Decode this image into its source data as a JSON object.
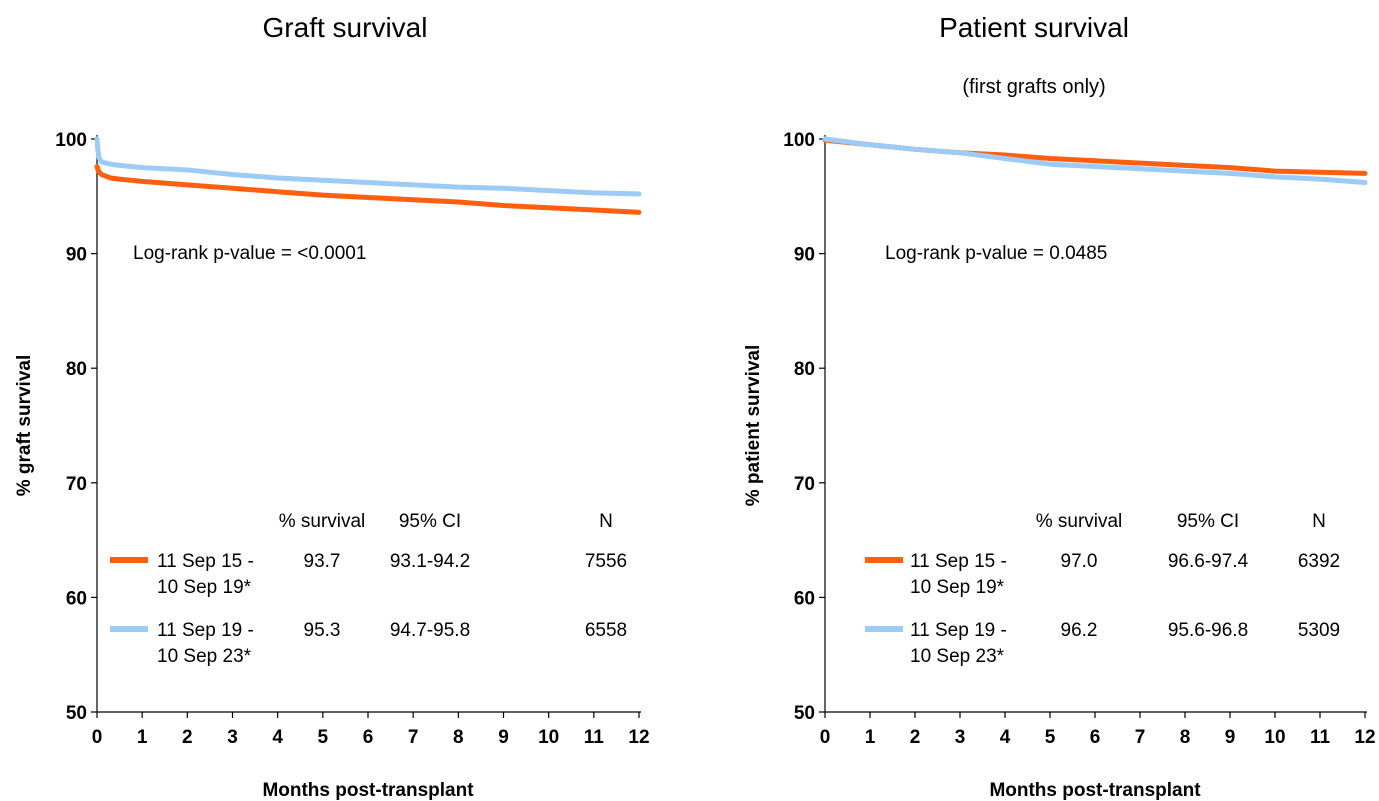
{
  "colors": {
    "series1": "#ff5f0f",
    "series2": "#9ccbf6",
    "axis": "#000000"
  },
  "chart_data": [
    {
      "type": "line",
      "title": "Graft survival",
      "subtitle": "",
      "xlabel": "Months post-transplant",
      "ylabel": "% graft survival",
      "xlim": [
        0,
        12
      ],
      "ylim": [
        50,
        100
      ],
      "xticks": [
        0,
        1,
        2,
        3,
        4,
        5,
        6,
        7,
        8,
        9,
        10,
        11,
        12
      ],
      "yticks": [
        50,
        60,
        70,
        80,
        90,
        100
      ],
      "grid": false,
      "annotation": "Log-rank p-value = <0.0001",
      "table_headers": [
        "% survival",
        "95% CI",
        "N"
      ],
      "series": [
        {
          "name_line1": "11 Sep 15 -",
          "name_line2": "10 Sep 19*",
          "color": "#ff5f0f",
          "survival": "93.7",
          "ci": "93.1-94.2",
          "n": "7556",
          "x": [
            0,
            0.03,
            0.1,
            0.3,
            0.5,
            1,
            2,
            3,
            4,
            5,
            6,
            7,
            8,
            9,
            10,
            11,
            12
          ],
          "y": [
            97.6,
            97.2,
            96.9,
            96.6,
            96.5,
            96.3,
            96.0,
            95.7,
            95.4,
            95.1,
            94.9,
            94.7,
            94.5,
            94.2,
            94.0,
            93.8,
            93.6
          ]
        },
        {
          "name_line1": "11 Sep 19 -",
          "name_line2": "10 Sep 23*",
          "color": "#9ccbf6",
          "survival": "95.3",
          "ci": "94.7-95.8",
          "n": "6558",
          "x": [
            0,
            0.02,
            0.05,
            0.1,
            0.3,
            0.5,
            1,
            2,
            3,
            4,
            5,
            6,
            7,
            8,
            9,
            10,
            11,
            12
          ],
          "y": [
            100,
            99.0,
            98.3,
            98.0,
            97.8,
            97.7,
            97.5,
            97.3,
            96.9,
            96.6,
            96.4,
            96.2,
            96.0,
            95.8,
            95.7,
            95.5,
            95.3,
            95.2
          ]
        }
      ]
    },
    {
      "type": "line",
      "title": "Patient survival",
      "subtitle": "(first grafts only)",
      "xlabel": "Months post-transplant",
      "ylabel": "% patient survival",
      "xlim": [
        0,
        12
      ],
      "ylim": [
        50,
        100
      ],
      "xticks": [
        0,
        1,
        2,
        3,
        4,
        5,
        6,
        7,
        8,
        9,
        10,
        11,
        12
      ],
      "yticks": [
        50,
        60,
        70,
        80,
        90,
        100
      ],
      "grid": false,
      "annotation": "Log-rank p-value = 0.0485",
      "table_headers": [
        "% survival",
        "95% CI",
        "N"
      ],
      "series": [
        {
          "name_line1": "11 Sep 15 -",
          "name_line2": "10 Sep 19*",
          "color": "#ff5f0f",
          "survival": "97.0",
          "ci": "96.6-97.4",
          "n": "6392",
          "x": [
            0,
            1,
            2,
            3,
            4,
            5,
            6,
            7,
            8,
            9,
            10,
            11,
            12
          ],
          "y": [
            99.9,
            99.5,
            99.1,
            98.8,
            98.6,
            98.3,
            98.1,
            97.9,
            97.7,
            97.5,
            97.2,
            97.1,
            97.0
          ]
        },
        {
          "name_line1": "11 Sep 19 -",
          "name_line2": "10 Sep 23*",
          "color": "#9ccbf6",
          "survival": "96.2",
          "ci": "95.6-96.8",
          "n": "5309",
          "x": [
            0,
            1,
            2,
            3,
            4,
            5,
            6,
            7,
            8,
            9,
            10,
            11,
            12
          ],
          "y": [
            100,
            99.5,
            99.1,
            98.8,
            98.3,
            97.8,
            97.6,
            97.4,
            97.2,
            97.0,
            96.7,
            96.5,
            96.2
          ]
        }
      ]
    }
  ]
}
